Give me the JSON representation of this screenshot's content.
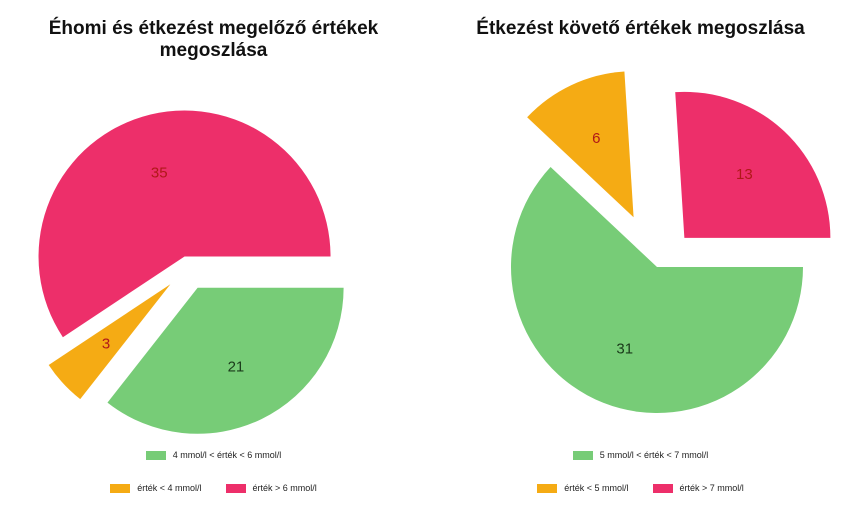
{
  "chart_data": [
    {
      "type": "pie",
      "title": "Éhomi és étkezést megelőző értékek\nmegoszlása",
      "slices": [
        {
          "label": "4 mmol/l < érték < 6 mmol/l",
          "value": 21,
          "color": "#77cc77"
        },
        {
          "label": "érték < 4 mmol/l",
          "value": 3,
          "color": "#f5ab14"
        },
        {
          "label": "érték > 6 mmol/l",
          "value": 35,
          "color": "#ed2f6a"
        }
      ],
      "label_colors": [
        "#1a3a1a",
        "#b01818",
        "#b01818"
      ],
      "exploded": true,
      "legend_position": "bottom"
    },
    {
      "type": "pie",
      "title": "Étkezést követő értékek megoszlása",
      "slices": [
        {
          "label": "5 mmol/l < érték < 7 mmol/l",
          "value": 31,
          "color": "#77cc77"
        },
        {
          "label": "érték < 5 mmol/l",
          "value": 6,
          "color": "#f5ab14"
        },
        {
          "label": "érték > 7 mmol/l",
          "value": 13,
          "color": "#ed2f6a"
        }
      ],
      "label_colors": [
        "#1a3a1a",
        "#b01818",
        "#b01818"
      ],
      "exploded": true,
      "legend_position": "bottom"
    }
  ]
}
